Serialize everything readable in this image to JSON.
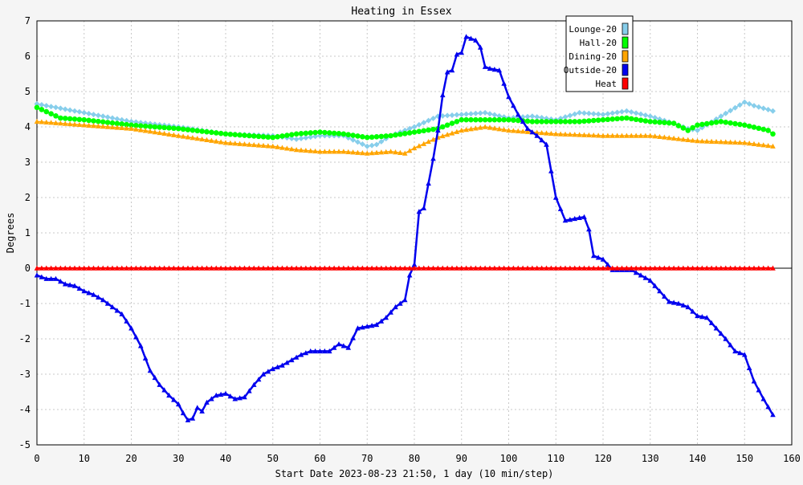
{
  "chart_data": {
    "type": "line",
    "title": "Heating in Essex",
    "xlabel": "Start Date 2023-08-23 21:50, 1 day (10 min/step)",
    "ylabel": "Degrees",
    "xlim": [
      0,
      160
    ],
    "ylim": [
      -5,
      7
    ],
    "x_ticks": [
      0,
      10,
      20,
      30,
      40,
      50,
      60,
      70,
      80,
      90,
      100,
      110,
      120,
      130,
      140,
      150,
      160
    ],
    "y_ticks": [
      -5,
      -4,
      -3,
      -2,
      -1,
      0,
      1,
      2,
      3,
      4,
      5,
      6,
      7
    ],
    "grid": true,
    "legend_position": "top-right",
    "series": [
      {
        "name": "Lounge-20",
        "color": "#87ceeb",
        "marker": "diamond",
        "x": [
          0,
          10,
          20,
          30,
          40,
          50,
          55,
          60,
          65,
          70,
          72,
          75,
          80,
          85,
          90,
          95,
          100,
          105,
          110,
          115,
          120,
          125,
          130,
          135,
          138,
          140,
          145,
          150,
          152,
          156
        ],
        "y": [
          4.65,
          4.4,
          4.15,
          4.0,
          3.8,
          3.75,
          3.65,
          3.75,
          3.75,
          3.45,
          3.5,
          3.75,
          4.0,
          4.3,
          4.35,
          4.4,
          4.25,
          4.3,
          4.2,
          4.4,
          4.35,
          4.45,
          4.3,
          4.1,
          3.95,
          3.9,
          4.3,
          4.7,
          4.6,
          4.45
        ]
      },
      {
        "name": "Hall-20",
        "color": "#00ff00",
        "marker": "circle",
        "x": [
          0,
          5,
          10,
          20,
          30,
          40,
          50,
          55,
          60,
          65,
          70,
          75,
          80,
          85,
          90,
          95,
          100,
          105,
          110,
          115,
          120,
          125,
          130,
          135,
          138,
          140,
          145,
          150,
          155,
          156
        ],
        "y": [
          4.55,
          4.25,
          4.2,
          4.05,
          3.95,
          3.8,
          3.7,
          3.8,
          3.85,
          3.8,
          3.7,
          3.75,
          3.85,
          3.95,
          4.2,
          4.2,
          4.2,
          4.15,
          4.15,
          4.15,
          4.2,
          4.25,
          4.15,
          4.1,
          3.9,
          4.05,
          4.15,
          4.05,
          3.9,
          3.8
        ]
      },
      {
        "name": "Dining-20",
        "color": "#ffa500",
        "marker": "triangle",
        "x": [
          0,
          10,
          20,
          30,
          40,
          50,
          55,
          60,
          65,
          70,
          75,
          78,
          80,
          85,
          90,
          95,
          100,
          105,
          110,
          120,
          130,
          140,
          150,
          156
        ],
        "y": [
          4.15,
          4.05,
          3.95,
          3.75,
          3.55,
          3.45,
          3.35,
          3.3,
          3.3,
          3.25,
          3.3,
          3.25,
          3.4,
          3.7,
          3.9,
          4.0,
          3.9,
          3.85,
          3.8,
          3.75,
          3.75,
          3.6,
          3.55,
          3.45
        ]
      },
      {
        "name": "Outside-20",
        "color": "#0000ee",
        "marker": "triangle",
        "x": [
          0,
          2,
          4,
          6,
          8,
          10,
          12,
          14,
          16,
          18,
          20,
          22,
          24,
          26,
          28,
          30,
          31,
          32,
          33,
          34,
          35,
          36,
          38,
          40,
          42,
          44,
          46,
          48,
          50,
          52,
          54,
          56,
          58,
          60,
          62,
          64,
          66,
          68,
          70,
          72,
          74,
          76,
          78,
          79,
          80,
          81,
          82,
          84,
          85,
          86,
          87,
          88,
          89,
          90,
          91,
          92,
          93,
          94,
          95,
          96,
          98,
          100,
          102,
          104,
          106,
          108,
          110,
          112,
          114,
          116,
          117,
          118,
          120,
          121,
          122,
          124,
          126,
          128,
          130,
          132,
          134,
          136,
          138,
          140,
          142,
          144,
          146,
          148,
          150,
          152,
          154,
          156
        ],
        "y": [
          -0.2,
          -0.3,
          -0.3,
          -0.45,
          -0.5,
          -0.65,
          -0.75,
          -0.9,
          -1.1,
          -1.3,
          -1.7,
          -2.2,
          -2.9,
          -3.3,
          -3.6,
          -3.85,
          -4.1,
          -4.3,
          -4.25,
          -3.95,
          -4.05,
          -3.8,
          -3.6,
          -3.55,
          -3.7,
          -3.65,
          -3.3,
          -3.0,
          -2.85,
          -2.75,
          -2.6,
          -2.45,
          -2.35,
          -2.35,
          -2.35,
          -2.15,
          -2.25,
          -1.7,
          -1.65,
          -1.6,
          -1.4,
          -1.1,
          -0.9,
          -0.2,
          0.1,
          1.6,
          1.7,
          3.1,
          3.9,
          4.9,
          5.55,
          5.6,
          6.05,
          6.1,
          6.55,
          6.5,
          6.45,
          6.25,
          5.7,
          5.65,
          5.6,
          4.85,
          4.35,
          3.95,
          3.75,
          3.5,
          2.0,
          1.35,
          1.4,
          1.45,
          1.1,
          0.35,
          0.25,
          0.1,
          -0.05,
          -0.05,
          -0.05,
          -0.2,
          -0.35,
          -0.65,
          -0.95,
          -1.0,
          -1.1,
          -1.35,
          -1.4,
          -1.7,
          -2.0,
          -2.35,
          -2.45,
          -3.2,
          -3.7,
          -4.15
        ]
      },
      {
        "name": "Heat",
        "color": "#ff0000",
        "marker": "triangle",
        "x": [
          0,
          156
        ],
        "y": [
          0,
          0
        ]
      }
    ]
  }
}
